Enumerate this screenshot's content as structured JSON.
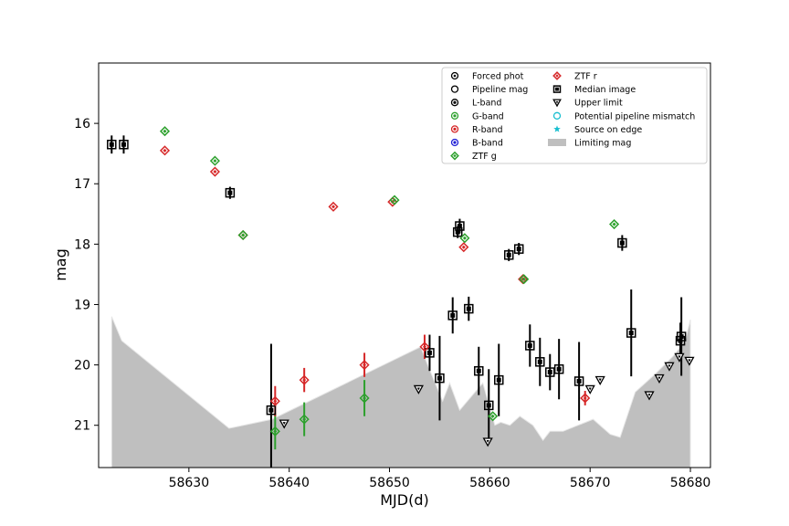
{
  "chart_data": {
    "type": "scatter",
    "xlabel": "MJD(d)",
    "ylabel": "mag",
    "xlim": [
      58621,
      58682
    ],
    "ylim": [
      21.7,
      15.0
    ],
    "y_inverted": true,
    "xticks": [
      58630,
      58640,
      58650,
      58660,
      58670,
      58680
    ],
    "yticks": [
      16,
      17,
      18,
      19,
      20,
      21
    ],
    "grid": false,
    "legend_placement": "top-right",
    "colors": {
      "ztf_g": "#2ca02c",
      "ztf_r": "#d62728",
      "g_band": "#2ca02c",
      "r_band": "#d62728",
      "b_band": "#1f1fd6",
      "median": "#000000",
      "limiting": "#bfbfbf",
      "mismatch": "#17becf"
    },
    "legend": [
      {
        "label": "Forced phot",
        "marker": "forced"
      },
      {
        "label": "Pipeline mag",
        "marker": "pipeline"
      },
      {
        "label": "L-band",
        "marker": "lband"
      },
      {
        "label": "G-band",
        "marker": "gband"
      },
      {
        "label": "R-band",
        "marker": "rband"
      },
      {
        "label": "B-band",
        "marker": "bband"
      },
      {
        "label": "ZTF g",
        "marker": "ztfg"
      },
      {
        "label": "ZTF r",
        "marker": "ztfr"
      },
      {
        "label": "Median image",
        "marker": "median"
      },
      {
        "label": "Upper limit",
        "marker": "upper"
      },
      {
        "label": "Potential pipeline mismatch",
        "marker": "mismatch"
      },
      {
        "label": "Source on edge",
        "marker": "edge"
      },
      {
        "label": "Limiting mag",
        "marker": "limiting"
      }
    ],
    "limiting_mag": {
      "x": [
        58622.3,
        58623.3,
        58634.0,
        58638.3,
        58653.1,
        58653.8,
        58655.3,
        58656.0,
        58657.0,
        58659.3,
        58660.5,
        58661.1,
        58662.0,
        58663.0,
        58664.3,
        58665.3,
        58666.0,
        58667.3,
        58668.8,
        58670.3,
        58672.0,
        58673.0,
        58674.5,
        58676.5,
        58678.3,
        58679.5,
        58680.0
      ],
      "y": [
        19.2,
        19.6,
        21.05,
        20.9,
        19.7,
        20.0,
        20.6,
        20.3,
        20.75,
        20.3,
        21.0,
        20.95,
        21.0,
        20.85,
        21.0,
        21.25,
        21.1,
        21.1,
        21.0,
        20.9,
        21.15,
        21.2,
        20.45,
        20.15,
        19.85,
        19.6,
        19.25
      ]
    },
    "ztf_g": [
      {
        "x": 58627.6,
        "y": 16.13
      },
      {
        "x": 58632.6,
        "y": 16.62
      },
      {
        "x": 58635.4,
        "y": 17.85
      },
      {
        "x": 58638.6,
        "y": 21.1,
        "err": 0.3
      },
      {
        "x": 58641.5,
        "y": 20.9,
        "err": 0.28
      },
      {
        "x": 58647.5,
        "y": 20.55,
        "err": 0.3
      },
      {
        "x": 58650.5,
        "y": 17.27
      },
      {
        "x": 58657.5,
        "y": 17.9
      },
      {
        "x": 58660.3,
        "y": 20.85
      },
      {
        "x": 58663.4,
        "y": 18.58
      },
      {
        "x": 58672.4,
        "y": 17.67
      }
    ],
    "ztf_r": [
      {
        "x": 58627.6,
        "y": 16.45
      },
      {
        "x": 58632.6,
        "y": 16.8
      },
      {
        "x": 58635.4,
        "y": 17.85
      },
      {
        "x": 58638.6,
        "y": 20.6,
        "err": 0.25
      },
      {
        "x": 58641.5,
        "y": 20.25,
        "err": 0.2
      },
      {
        "x": 58647.5,
        "y": 20.0,
        "err": 0.2
      },
      {
        "x": 58644.4,
        "y": 17.38
      },
      {
        "x": 58650.3,
        "y": 17.3
      },
      {
        "x": 58653.5,
        "y": 19.7,
        "err": 0.2
      },
      {
        "x": 58657.4,
        "y": 18.05
      },
      {
        "x": 58663.3,
        "y": 18.58
      },
      {
        "x": 58669.5,
        "y": 20.55,
        "err": 0.12
      }
    ],
    "median_image": [
      {
        "x": 58622.3,
        "y": 16.35,
        "err": 0.15
      },
      {
        "x": 58623.5,
        "y": 16.35,
        "err": 0.15
      },
      {
        "x": 58634.1,
        "y": 17.15,
        "err": 0.1
      },
      {
        "x": 58638.2,
        "y": 20.75,
        "err": 1.1
      },
      {
        "x": 58654.0,
        "y": 19.8,
        "err": 0.3
      },
      {
        "x": 58655.0,
        "y": 20.22,
        "err": 0.7
      },
      {
        "x": 58656.3,
        "y": 19.18,
        "err": 0.3
      },
      {
        "x": 58657.0,
        "y": 17.7,
        "err": 0.12
      },
      {
        "x": 58656.8,
        "y": 17.8,
        "err": 0.1
      },
      {
        "x": 58657.9,
        "y": 19.07,
        "err": 0.2
      },
      {
        "x": 58658.9,
        "y": 20.1,
        "err": 0.4
      },
      {
        "x": 58659.9,
        "y": 20.67,
        "err": 0.6
      },
      {
        "x": 58660.9,
        "y": 20.25,
        "err": 0.6
      },
      {
        "x": 58661.9,
        "y": 18.18,
        "err": 0.1
      },
      {
        "x": 58662.9,
        "y": 18.08,
        "err": 0.1
      },
      {
        "x": 58664.0,
        "y": 19.68,
        "err": 0.35
      },
      {
        "x": 58665.0,
        "y": 19.95,
        "err": 0.4
      },
      {
        "x": 58666.0,
        "y": 20.12,
        "err": 0.3
      },
      {
        "x": 58666.9,
        "y": 20.07,
        "err": 0.5
      },
      {
        "x": 58668.9,
        "y": 20.27,
        "err": 0.65
      },
      {
        "x": 58673.2,
        "y": 17.98,
        "err": 0.13
      },
      {
        "x": 58674.1,
        "y": 19.47,
        "err": 0.72
      },
      {
        "x": 58679.1,
        "y": 19.53,
        "err": 0.65
      },
      {
        "x": 58679.0,
        "y": 19.6,
        "err": 0.3
      }
    ],
    "upper_limits": [
      {
        "x": 58639.5,
        "y": 20.97
      },
      {
        "x": 58652.9,
        "y": 20.4
      },
      {
        "x": 58659.8,
        "y": 21.27
      },
      {
        "x": 58670.0,
        "y": 20.4
      },
      {
        "x": 58671.0,
        "y": 20.25
      },
      {
        "x": 58675.9,
        "y": 20.5
      },
      {
        "x": 58676.9,
        "y": 20.22
      },
      {
        "x": 58677.9,
        "y": 20.02
      },
      {
        "x": 58678.9,
        "y": 19.87
      },
      {
        "x": 58679.9,
        "y": 19.93
      }
    ]
  }
}
